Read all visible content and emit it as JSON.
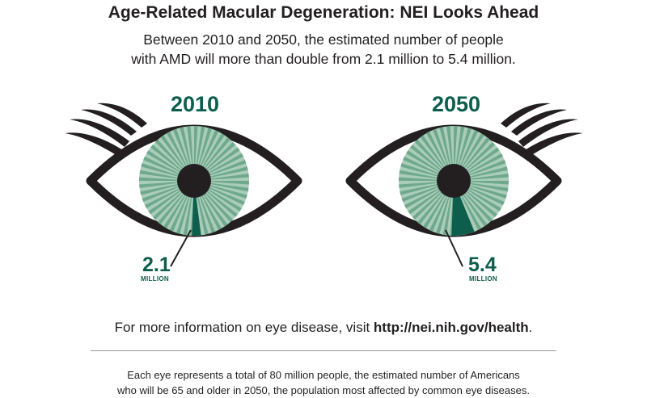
{
  "header": {
    "title": "Age-Related Macular Degeneration: NEI Looks Ahead",
    "subtitle_line1": "Between 2010 and 2050, the estimated number of people",
    "subtitle_line2": "with AMD will more than double from 2.1 million to 5.4 million."
  },
  "colors": {
    "accent": "#0d5e4c",
    "iris": "#6fa88c",
    "iris_light": "#a9cdb9",
    "outline": "#231f20"
  },
  "eyes": [
    {
      "year": "2010",
      "value": "2.1",
      "unit": "MILLION",
      "amount": 2.1
    },
    {
      "year": "2050",
      "value": "5.4",
      "unit": "MILLION",
      "amount": 5.4
    }
  ],
  "total_people_millions": 80,
  "info": {
    "prefix": "For more information on eye disease, visit ",
    "link": "http://nei.nih.gov/health",
    "suffix": "."
  },
  "footnote": {
    "line1": "Each eye represents a total of 80 million people, the estimated number of Americans",
    "line2": "who will be 65 and older in 2050, the population most affected by common eye diseases."
  }
}
